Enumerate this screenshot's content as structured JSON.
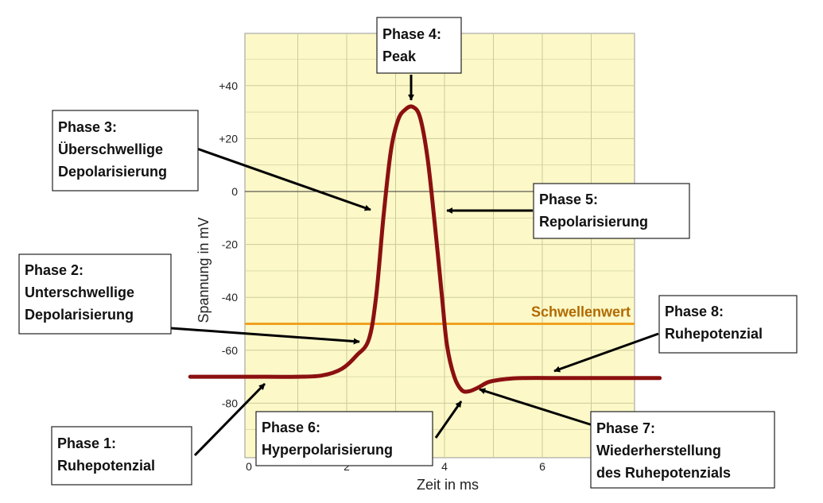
{
  "colors": {
    "plot_background": "#fcf8c8",
    "grid": "#cccc99",
    "curve": "#8b1010",
    "threshold": "#f0a020",
    "threshold_label": "#b06a00"
  },
  "chart_data": {
    "type": "line",
    "xlabel": "Zeit in ms",
    "ylabel": "Spannung in mV",
    "xlim": [
      0,
      8
    ],
    "ylim": [
      -100,
      60
    ],
    "x_ticks": [
      "0",
      "2",
      "4",
      "6"
    ],
    "y_ticks": [
      "+40",
      "+20",
      "0",
      "-20",
      "-40",
      "-60",
      "-80"
    ],
    "grid": true,
    "threshold": {
      "label": "Schwellenwert",
      "value": -50
    },
    "series": [
      {
        "x": [
          -1.2,
          0,
          1.0,
          1.5,
          1.9,
          2.2,
          2.45,
          2.6,
          2.75,
          2.9,
          3.05,
          3.2,
          3.35,
          3.5,
          3.65,
          3.8,
          3.95,
          4.05,
          4.2,
          4.35,
          4.5,
          4.7,
          4.9,
          5.2,
          5.6,
          6.5,
          7.5,
          8.4
        ],
        "y": [
          -70,
          -70,
          -70,
          -69.5,
          -67,
          -62,
          -56,
          -40,
          -10,
          15,
          27,
          31,
          32,
          28,
          13,
          -12,
          -40,
          -58,
          -70,
          -75,
          -75.5,
          -74,
          -72,
          -71,
          -70.5,
          -70.5,
          -70.5,
          -70.5
        ]
      }
    ]
  },
  "callouts": [
    {
      "id": "phase-1",
      "lines": [
        "Phase 1:",
        "Ruhepotenzial"
      ]
    },
    {
      "id": "phase-2",
      "lines": [
        "Phase 2:",
        "Unterschwellige",
        "Depolarisierung"
      ]
    },
    {
      "id": "phase-3",
      "lines": [
        "Phase 3:",
        "Überschwellige",
        "Depolarisierung"
      ]
    },
    {
      "id": "phase-4",
      "lines": [
        "Phase 4:",
        "Peak"
      ]
    },
    {
      "id": "phase-5",
      "lines": [
        "Phase 5:",
        "Repolarisierung"
      ]
    },
    {
      "id": "phase-6",
      "lines": [
        "Phase 6:",
        "Hyperpolarisierung"
      ]
    },
    {
      "id": "phase-7",
      "lines": [
        "Phase 7:",
        "Wiederherstellung",
        "des Ruhepotenzials"
      ]
    },
    {
      "id": "phase-8",
      "lines": [
        "Phase 8:",
        "Ruhepotenzial"
      ]
    }
  ]
}
